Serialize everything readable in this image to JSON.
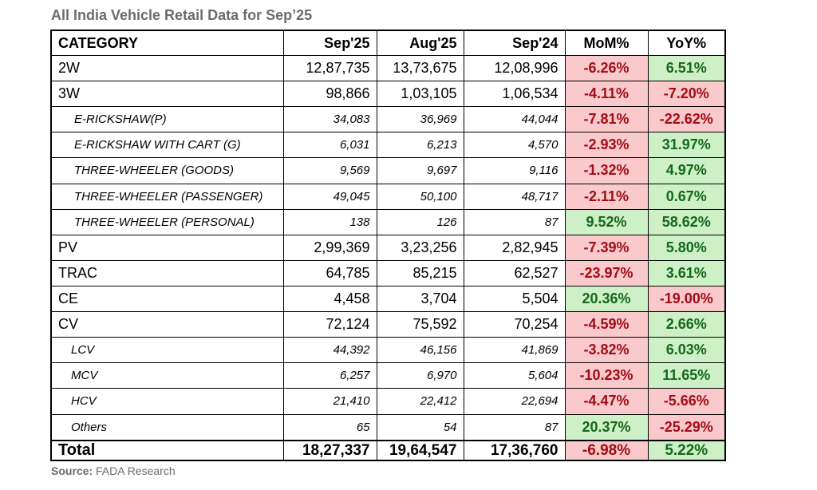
{
  "title": "All India Vehicle Retail Data for Sep’25",
  "headers": [
    "CATEGORY",
    "Sep'25",
    "Aug'25",
    "Sep'24",
    "MoM%",
    "YoY%"
  ],
  "rows": [
    {
      "category": "2W",
      "level": "main",
      "sep25": "12,87,735",
      "aug25": "13,73,675",
      "sep24": "12,08,996",
      "mom": "-6.26%",
      "yoy": "6.51%"
    },
    {
      "category": "3W",
      "level": "main",
      "sep25": "98,866",
      "aug25": "1,03,105",
      "sep24": "1,06,534",
      "mom": "-4.11%",
      "yoy": "-7.20%"
    },
    {
      "category": "E-RICKSHAW(P)",
      "level": "sub",
      "sep25": "34,083",
      "aug25": "36,969",
      "sep24": "44,044",
      "mom": "-7.81%",
      "yoy": "-22.62%"
    },
    {
      "category": "E-RICKSHAW WITH CART (G)",
      "level": "sub",
      "sep25": "6,031",
      "aug25": "6,213",
      "sep24": "4,570",
      "mom": "-2.93%",
      "yoy": "31.97%"
    },
    {
      "category": "THREE-WHEELER (GOODS)",
      "level": "sub",
      "sep25": "9,569",
      "aug25": "9,697",
      "sep24": "9,116",
      "mom": "-1.32%",
      "yoy": "4.97%"
    },
    {
      "category": "THREE-WHEELER (PASSENGER)",
      "level": "sub",
      "sep25": "49,045",
      "aug25": "50,100",
      "sep24": "48,717",
      "mom": "-2.11%",
      "yoy": "0.67%"
    },
    {
      "category": "THREE-WHEELER (PERSONAL)",
      "level": "sub",
      "sep25": "138",
      "aug25": "126",
      "sep24": "87",
      "mom": "9.52%",
      "yoy": "58.62%"
    },
    {
      "category": "PV",
      "level": "main",
      "sep25": "2,99,369",
      "aug25": "3,23,256",
      "sep24": "2,82,945",
      "mom": "-7.39%",
      "yoy": "5.80%"
    },
    {
      "category": "TRAC",
      "level": "main",
      "sep25": "64,785",
      "aug25": "85,215",
      "sep24": "62,527",
      "mom": "-23.97%",
      "yoy": "3.61%"
    },
    {
      "category": "CE",
      "level": "main",
      "sep25": "4,458",
      "aug25": "3,704",
      "sep24": "5,504",
      "mom": "20.36%",
      "yoy": "-19.00%"
    },
    {
      "category": "CV",
      "level": "main",
      "sep25": "72,124",
      "aug25": "75,592",
      "sep24": "70,254",
      "mom": "-4.59%",
      "yoy": "2.66%"
    },
    {
      "category": "LCV",
      "level": "sub2",
      "sep25": "44,392",
      "aug25": "46,156",
      "sep24": "41,869",
      "mom": "-3.82%",
      "yoy": "6.03%"
    },
    {
      "category": "MCV",
      "level": "sub2",
      "sep25": "6,257",
      "aug25": "6,970",
      "sep24": "5,604",
      "mom": "-10.23%",
      "yoy": "11.65%"
    },
    {
      "category": "HCV",
      "level": "sub2",
      "sep25": "21,410",
      "aug25": "22,412",
      "sep24": "22,694",
      "mom": "-4.47%",
      "yoy": "-5.66%"
    },
    {
      "category": "Others",
      "level": "sub2",
      "sep25": "65",
      "aug25": "54",
      "sep24": "87",
      "mom": "20.37%",
      "yoy": "-25.29%"
    }
  ],
  "total": {
    "category": "Total",
    "sep25": "18,27,337",
    "aug25": "19,64,547",
    "sep24": "17,36,760",
    "mom": "-6.98%",
    "yoy": "5.22%"
  },
  "source": {
    "label": "Source:",
    "text": "FADA Research"
  },
  "colors": {
    "negative_bg": "#f9c9cc",
    "negative_text": "#a10d16",
    "positive_bg": "#cdf0c6",
    "positive_text": "#14681c"
  }
}
